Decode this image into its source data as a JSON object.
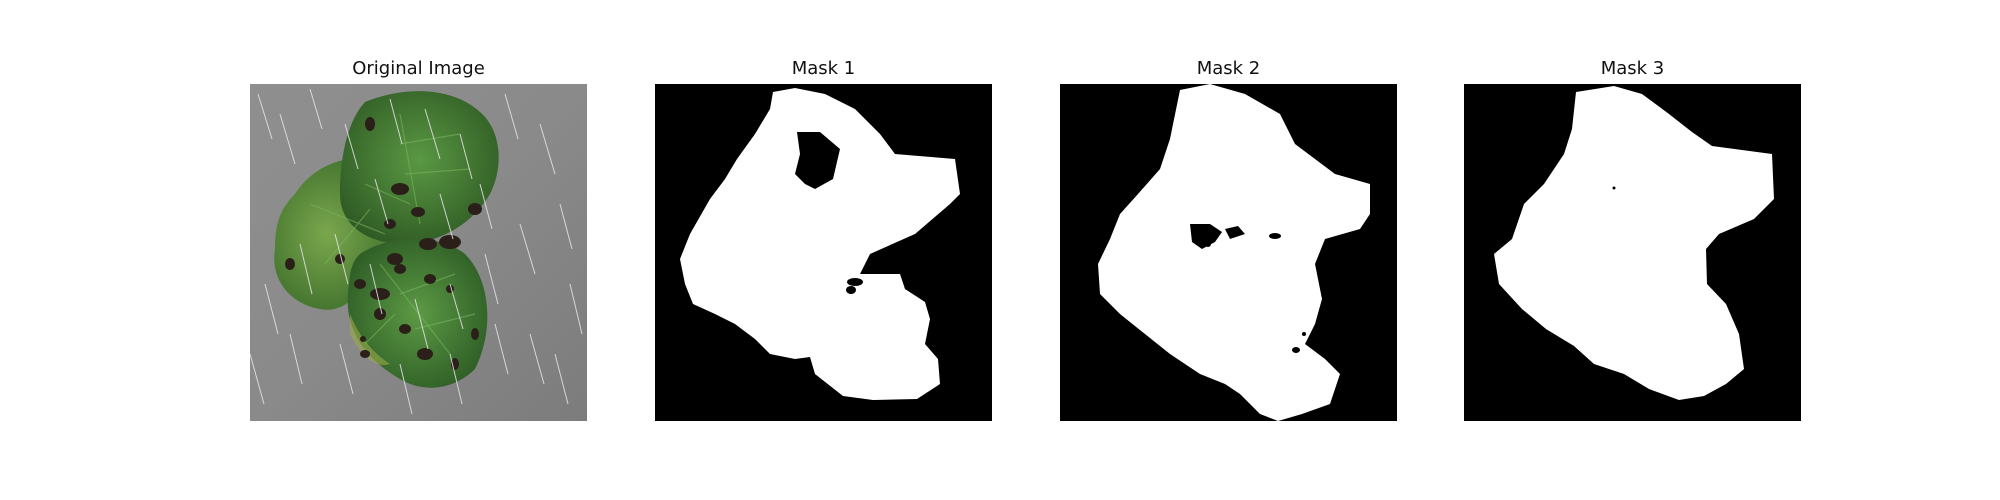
{
  "figure": {
    "panels": [
      {
        "title": "Original Image"
      },
      {
        "title": "Mask 1"
      },
      {
        "title": "Mask 2"
      },
      {
        "title": "Mask 3"
      }
    ]
  },
  "colors": {
    "background": "#ffffff",
    "ground": "#8c8c8c",
    "leaf_dark": "#2f5a24",
    "leaf_mid": "#4f8c3e",
    "leaf_light": "#6d9f4a",
    "disease_spot": "#2b1f1a",
    "rain_streak": "#e8e8e8",
    "mask_fg": "#ffffff",
    "mask_bg": "#000000"
  }
}
